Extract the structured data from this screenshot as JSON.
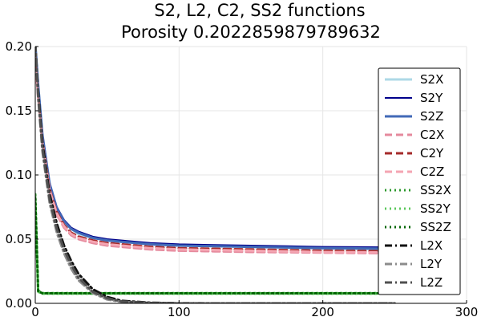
{
  "chart_data": {
    "type": "line",
    "title": "S2, L2, C2, SS2 functions",
    "subtitle": "Porosity 0.2022859879789632",
    "xlabel": "",
    "ylabel": "",
    "xlim": [
      0,
      300
    ],
    "ylim": [
      0,
      0.2
    ],
    "xticks": [
      0,
      100,
      200,
      300
    ],
    "xtick_labels": [
      "0",
      "100",
      "200",
      "300"
    ],
    "yticks": [
      0,
      0.05,
      0.1,
      0.15,
      0.2
    ],
    "ytick_labels": [
      "0.00",
      "0.05",
      "0.10",
      "0.15",
      "0.20"
    ],
    "grid": true,
    "legend_position": "right",
    "x": [
      0,
      2,
      5,
      10,
      15,
      20,
      25,
      30,
      40,
      50,
      60,
      80,
      100,
      125,
      150,
      175,
      200,
      225,
      250
    ],
    "series": [
      {
        "name": "S2X",
        "color": "#add8e6",
        "dash": "solid",
        "width": 3,
        "values": [
          0.2023,
          0.17,
          0.13,
          0.092,
          0.073,
          0.063,
          0.058,
          0.054,
          0.051,
          0.049,
          0.048,
          0.046,
          0.045,
          0.0445,
          0.044,
          0.0435,
          0.043,
          0.0425,
          0.042
        ]
      },
      {
        "name": "S2Y",
        "color": "#00008b",
        "dash": "solid",
        "width": 2,
        "values": [
          0.2023,
          0.171,
          0.132,
          0.094,
          0.075,
          0.065,
          0.059,
          0.056,
          0.052,
          0.05,
          0.049,
          0.047,
          0.046,
          0.0455,
          0.045,
          0.0445,
          0.044,
          0.0438,
          0.0436
        ]
      },
      {
        "name": "S2Z",
        "color": "#4169b7",
        "dash": "solid",
        "width": 3,
        "values": [
          0.2023,
          0.17,
          0.131,
          0.093,
          0.074,
          0.064,
          0.058,
          0.055,
          0.051,
          0.049,
          0.048,
          0.046,
          0.045,
          0.0445,
          0.044,
          0.0435,
          0.043,
          0.0428,
          0.0425
        ]
      },
      {
        "name": "C2X",
        "color": "#e58a9d",
        "dash": "dash",
        "width": 3,
        "values": [
          0.19,
          0.16,
          0.124,
          0.087,
          0.069,
          0.059,
          0.053,
          0.05,
          0.047,
          0.045,
          0.044,
          0.042,
          0.041,
          0.0405,
          0.04,
          0.0398,
          0.0395,
          0.0392,
          0.039
        ]
      },
      {
        "name": "C2Y",
        "color": "#a52a2a",
        "dash": "dash",
        "width": 3,
        "values": [
          0.192,
          0.162,
          0.126,
          0.089,
          0.071,
          0.061,
          0.055,
          0.052,
          0.049,
          0.047,
          0.046,
          0.044,
          0.043,
          0.0425,
          0.042,
          0.0415,
          0.041,
          0.0408,
          0.0406
        ]
      },
      {
        "name": "C2Z",
        "color": "#f4a5b2",
        "dash": "dash",
        "width": 3,
        "values": [
          0.191,
          0.161,
          0.125,
          0.088,
          0.07,
          0.06,
          0.054,
          0.051,
          0.048,
          0.046,
          0.045,
          0.043,
          0.042,
          0.0415,
          0.041,
          0.0405,
          0.04,
          0.0398,
          0.0395
        ]
      },
      {
        "name": "SS2X",
        "color": "#2e9a2e",
        "dash": "dot",
        "width": 3,
        "values": [
          0.085,
          0.01,
          0.008,
          0.008,
          0.008,
          0.008,
          0.008,
          0.008,
          0.008,
          0.008,
          0.008,
          0.008,
          0.008,
          0.008,
          0.008,
          0.008,
          0.008,
          0.008,
          0.008
        ]
      },
      {
        "name": "SS2Y",
        "color": "#5cc85c",
        "dash": "dot",
        "width": 3,
        "values": [
          0.08,
          0.009,
          0.0075,
          0.0075,
          0.0075,
          0.0075,
          0.0075,
          0.0075,
          0.0075,
          0.0075,
          0.0075,
          0.0075,
          0.0075,
          0.0075,
          0.0075,
          0.0075,
          0.0075,
          0.0075,
          0.0075
        ]
      },
      {
        "name": "SS2Z",
        "color": "#006400",
        "dash": "dot",
        "width": 3,
        "values": [
          0.082,
          0.0095,
          0.0078,
          0.0078,
          0.0078,
          0.0078,
          0.0078,
          0.0078,
          0.0078,
          0.0078,
          0.0078,
          0.0078,
          0.0078,
          0.0078,
          0.0078,
          0.0078,
          0.0078,
          0.0078,
          0.0078
        ]
      },
      {
        "name": "L2X",
        "color": "#111111",
        "dash": "dashdot",
        "width": 3,
        "values": [
          0.2023,
          0.165,
          0.125,
          0.085,
          0.062,
          0.045,
          0.033,
          0.023,
          0.011,
          0.005,
          0.002,
          0.0005,
          0.0001,
          0,
          0,
          0,
          0,
          0,
          0
        ]
      },
      {
        "name": "L2Y",
        "color": "#8c8c8c",
        "dash": "dashdot",
        "width": 3,
        "values": [
          0.2023,
          0.16,
          0.118,
          0.078,
          0.055,
          0.039,
          0.027,
          0.018,
          0.008,
          0.003,
          0.0012,
          0.0002,
          0,
          0,
          0,
          0,
          0,
          0,
          0
        ]
      },
      {
        "name": "L2Z",
        "color": "#505050",
        "dash": "dashdot",
        "width": 3,
        "values": [
          0.2023,
          0.162,
          0.121,
          0.081,
          0.058,
          0.042,
          0.03,
          0.02,
          0.009,
          0.004,
          0.0015,
          0.0003,
          0,
          0,
          0,
          0,
          0,
          0,
          0
        ]
      }
    ]
  }
}
